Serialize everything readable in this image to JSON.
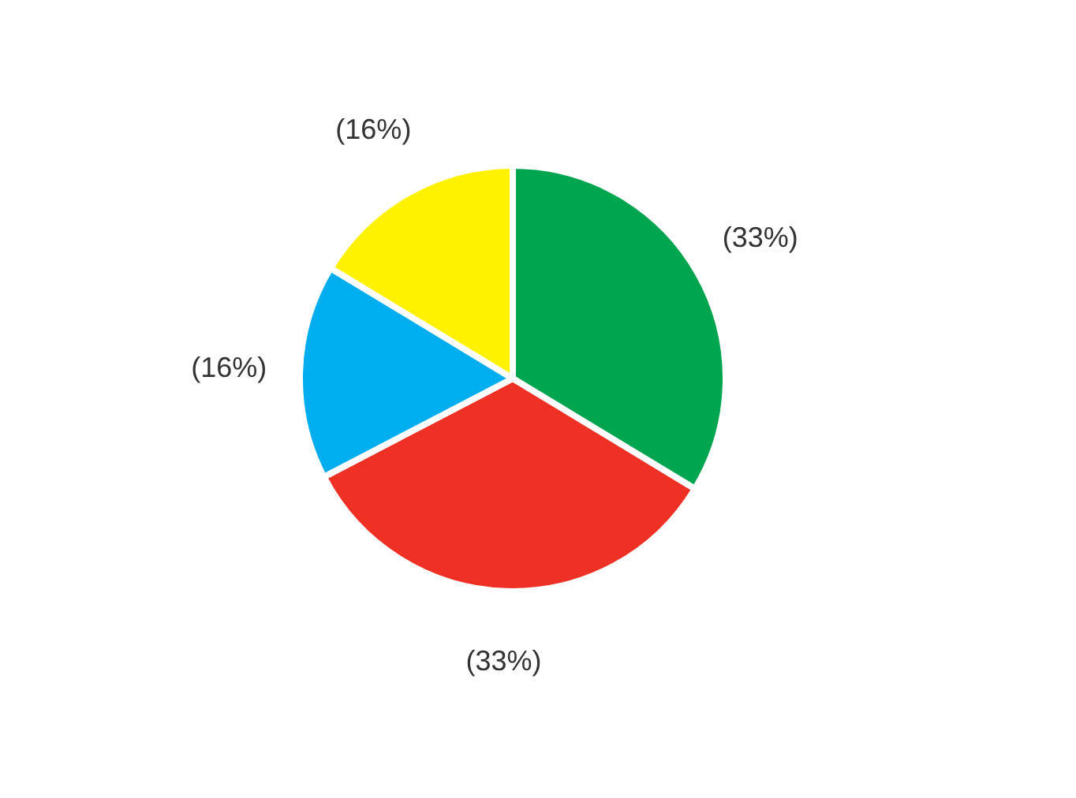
{
  "chart_data": {
    "type": "pie",
    "categories": [
      null,
      null,
      null,
      null
    ],
    "values": [
      33,
      33,
      16,
      16
    ],
    "colors": [
      "#00a54f",
      "#ee3124",
      "#00aeef",
      "#fff200"
    ],
    "value_labels": [
      "(33%)",
      "(33%)",
      "(16%)",
      "(16%)"
    ],
    "legend": false
  }
}
